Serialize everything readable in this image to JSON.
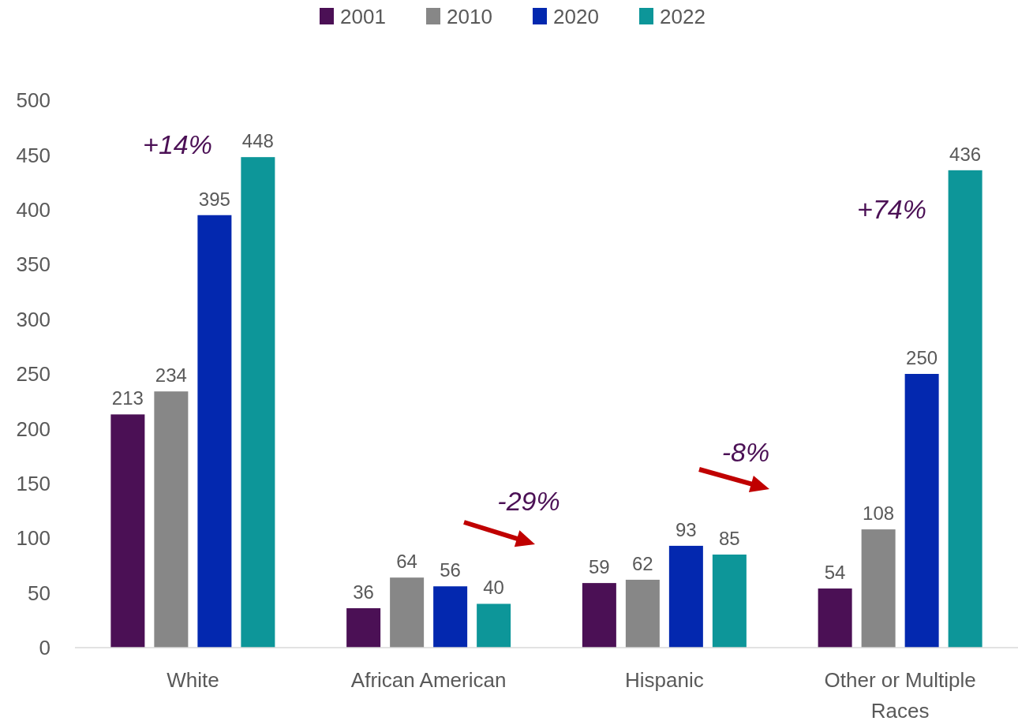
{
  "chart_data": {
    "type": "bar",
    "categories": [
      "White",
      "African American",
      "Hispanic",
      "Other or Multiple Races"
    ],
    "series": [
      {
        "name": "2001",
        "color": "#4b1055",
        "values": [
          213,
          36,
          59,
          54
        ]
      },
      {
        "name": "2010",
        "color": "#878787",
        "values": [
          234,
          64,
          62,
          108
        ]
      },
      {
        "name": "2020",
        "color": "#0328af",
        "values": [
          395,
          56,
          93,
          250
        ]
      },
      {
        "name": "2022",
        "color": "#0d9699",
        "values": [
          448,
          40,
          85,
          436
        ]
      }
    ],
    "ylim": [
      0,
      500
    ],
    "yticks": [
      0,
      50,
      100,
      150,
      200,
      250,
      300,
      350,
      400,
      450,
      500
    ],
    "grid": false,
    "legend": "top",
    "data_labels": true,
    "annotations": [
      "+14%",
      "-29%",
      "-8%",
      "+74%"
    ]
  }
}
